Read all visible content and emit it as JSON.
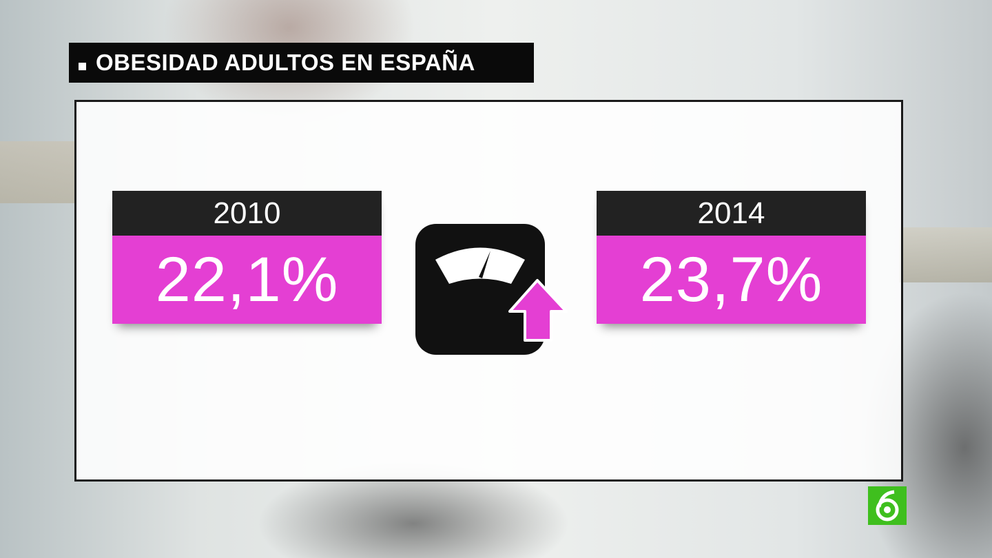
{
  "header": {
    "title": "OBESIDAD ADULTOS EN ESPAÑA"
  },
  "panels": [
    {
      "year": "2010",
      "value": "22,1%"
    },
    {
      "year": "2014",
      "value": "23,7%"
    }
  ]
}
